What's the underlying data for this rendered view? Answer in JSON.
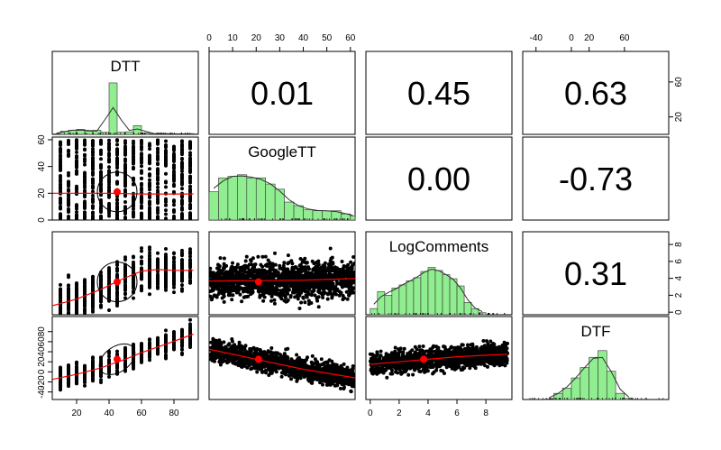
{
  "chart_data": {
    "type": "scatter-matrix",
    "variables": [
      "DTT",
      "GoogleTT",
      "LogComments",
      "DTF"
    ],
    "correlations": [
      {
        "row": 0,
        "col": 1,
        "value": "0.01"
      },
      {
        "row": 0,
        "col": 2,
        "value": "0.45"
      },
      {
        "row": 0,
        "col": 3,
        "value": "0.63"
      },
      {
        "row": 1,
        "col": 2,
        "value": "0.00"
      },
      {
        "row": 1,
        "col": 3,
        "value": "-0.73"
      },
      {
        "row": 2,
        "col": 3,
        "value": "0.31"
      }
    ],
    "ranges": {
      "DTT": [
        5,
        95
      ],
      "GoogleTT": [
        0,
        62
      ],
      "LogComments": [
        -0.3,
        9.8
      ],
      "DTF": [
        -55,
        110
      ]
    },
    "axes": {
      "top": [
        {
          "col": 1,
          "ticks": [
            0,
            10,
            20,
            30,
            40,
            50,
            60
          ]
        },
        {
          "col": 3,
          "ticks": [
            -40,
            0,
            20,
            60
          ]
        }
      ],
      "right": [
        {
          "row": 0,
          "ticks": [
            20,
            60
          ],
          "range": [
            0,
            95
          ]
        },
        {
          "row": 2,
          "ticks": [
            0,
            2,
            4,
            6,
            8
          ],
          "range": [
            -0.3,
            9.5
          ]
        }
      ],
      "left": [
        {
          "row": 1,
          "ticks": [
            0,
            20,
            40,
            60
          ]
        },
        {
          "row": 2,
          "ticks": [],
          "note": "no tick labels on this panel"
        },
        {
          "row": 3,
          "ticks": [
            -40,
            -20,
            0,
            20,
            40,
            60,
            80
          ]
        }
      ],
      "bottom": [
        {
          "col": 0,
          "ticks": [
            20,
            40,
            60,
            80
          ]
        },
        {
          "col": 2,
          "ticks": [
            0,
            2,
            4,
            6,
            8
          ]
        }
      ]
    },
    "histograms": {
      "DTT": {
        "breaks": [
          5,
          10,
          15,
          20,
          25,
          30,
          35,
          40,
          45,
          50,
          55,
          60,
          65,
          70,
          75,
          80,
          85,
          90,
          95
        ],
        "heights": [
          0.01,
          0.06,
          0.08,
          0.1,
          0.06,
          0.08,
          0.04,
          1.0,
          0.04,
          0.05,
          0.17,
          0.03,
          0.01,
          0.02,
          0.01,
          0.01,
          0.01,
          0.01
        ]
      },
      "GoogleTT": {
        "breaks": [
          0,
          4,
          8,
          12,
          16,
          20,
          24,
          28,
          32,
          36,
          40,
          44,
          48,
          52,
          56,
          60,
          62
        ],
        "heights": [
          0.55,
          0.82,
          0.85,
          0.88,
          0.82,
          0.82,
          0.7,
          0.6,
          0.35,
          0.28,
          0.2,
          0.18,
          0.18,
          0.18,
          0.12,
          0.08
        ]
      },
      "LogComments": {
        "breaks": [
          0,
          0.5,
          1,
          1.5,
          2,
          2.5,
          3,
          3.5,
          4,
          4.5,
          5,
          5.5,
          6,
          6.5,
          7,
          7.5,
          8
        ],
        "heights": [
          0.12,
          0.45,
          0.38,
          0.52,
          0.58,
          0.66,
          0.72,
          0.84,
          0.92,
          0.86,
          0.78,
          0.7,
          0.56,
          0.24,
          0.12,
          0.04
        ]
      },
      "DTF": {
        "breaks": [
          -30,
          -20,
          -10,
          0,
          10,
          20,
          30,
          40,
          50,
          60,
          70
        ],
        "heights": [
          0.01,
          0.12,
          0.22,
          0.42,
          0.62,
          0.82,
          0.95,
          0.55,
          0.12,
          0.02
        ]
      }
    },
    "smoothers": {
      "DTT~GoogleTT": {
        "x": [
          5,
          20,
          40,
          60,
          80,
          92
        ],
        "y": [
          20,
          20,
          20,
          19.5,
          19.5,
          19.5
        ]
      },
      "DTT~LogComments": {
        "x": [
          5,
          20,
          35,
          50,
          60,
          70,
          80,
          92
        ],
        "y": [
          0.8,
          1.6,
          2.8,
          4.2,
          5.0,
          5.2,
          5.1,
          5.1
        ]
      },
      "DTT~DTF": {
        "x": [
          5,
          20,
          35,
          50,
          60,
          75,
          92
        ],
        "y": [
          -15,
          -5,
          8,
          25,
          38,
          55,
          75
        ]
      },
      "GoogleTT~LogComments": {
        "x": [
          0,
          20,
          40,
          62
        ],
        "y": [
          3.8,
          3.85,
          3.9,
          4.1
        ]
      },
      "GoogleTT~DTF": {
        "x": [
          0,
          20,
          40,
          62
        ],
        "y": [
          45,
          25,
          5,
          -12
        ]
      },
      "LogComments~DTF": {
        "x": [
          0,
          2,
          4,
          6,
          8,
          9.5
        ],
        "y": [
          15,
          20,
          25,
          30,
          33,
          35
        ]
      }
    },
    "means": {
      "DTT": 45,
      "GoogleTT": 21,
      "LogComments": 3.7,
      "DTF": 25
    },
    "colors": {
      "histogram_fill": "#90ee90",
      "smoother": "#ff0000",
      "points": "#000000",
      "frame": "#000000"
    }
  }
}
